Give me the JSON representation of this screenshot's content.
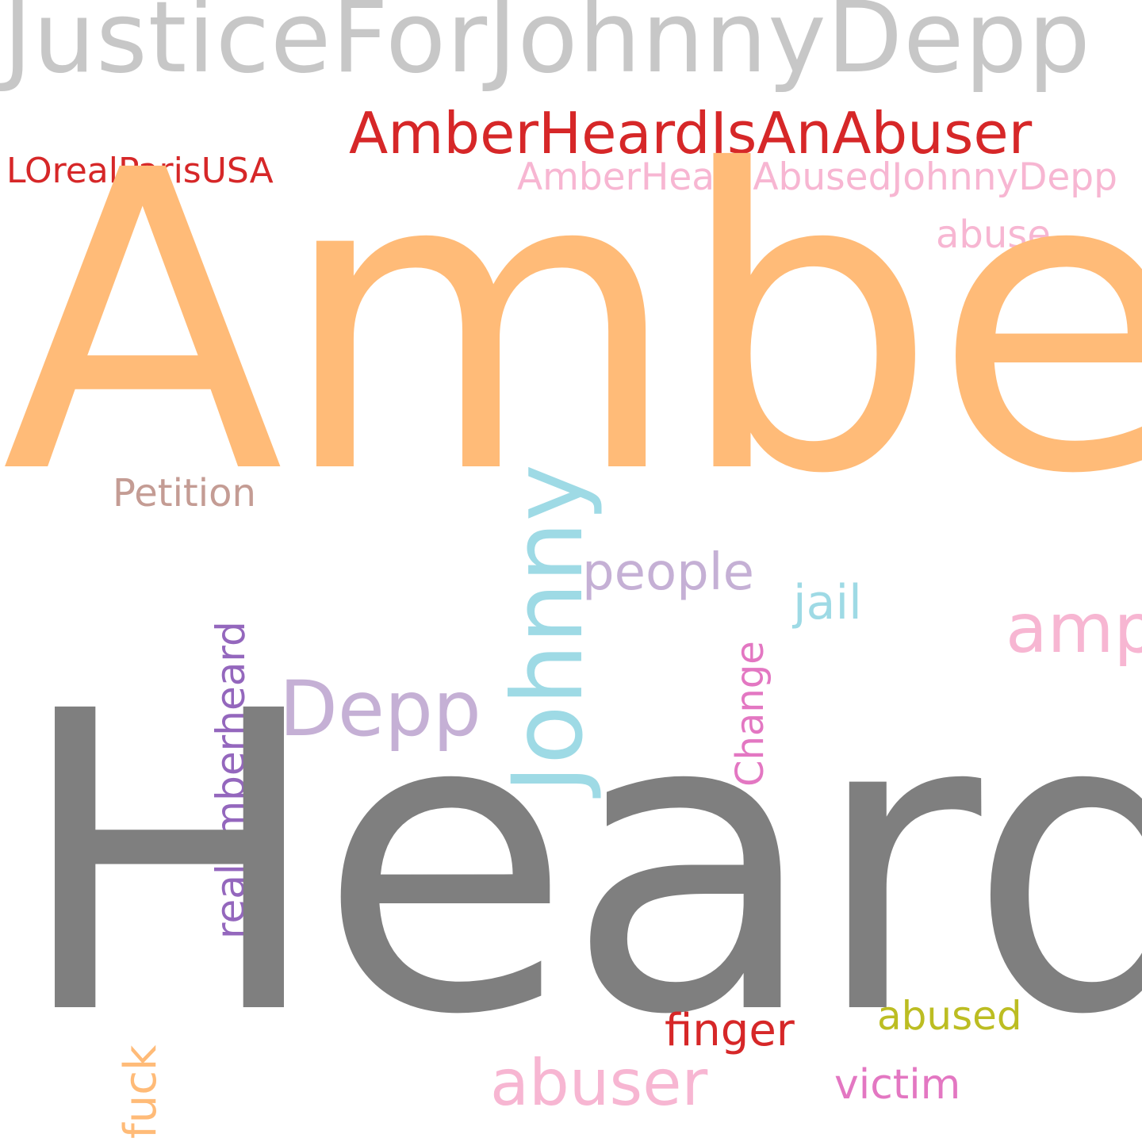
{
  "words": {
    "justice_for_johnny_depp": {
      "text": "JusticeForJohnnyDepp",
      "color": "#c7c7c7"
    },
    "amber_heard_is_an_abuser": {
      "text": "AmberHeardIsAnAbuser",
      "color": "#d62728"
    },
    "loreal_paris_usa": {
      "text": "LOrealParisUSA",
      "color": "#d62728"
    },
    "amber_heard_abused_johnny_depp": {
      "text": "AmberHeardAbusedJohnnyDepp",
      "color": "#f7b6d2"
    },
    "abuse": {
      "text": "abuse",
      "color": "#f7b6d2"
    },
    "amber": {
      "text": "Amber",
      "color": "#ffbb78"
    },
    "petition": {
      "text": "Petition",
      "color": "#c49c94"
    },
    "people": {
      "text": "people",
      "color": "#c5b0d5"
    },
    "jail": {
      "text": "jail",
      "color": "#9edae5"
    },
    "amp": {
      "text": "amp",
      "color": "#f7b6d2"
    },
    "depp": {
      "text": "Depp",
      "color": "#c5b0d5"
    },
    "johnny": {
      "text": "Johnny",
      "color": "#9edae5"
    },
    "realamberheard": {
      "text": "realamberheard",
      "color": "#9467bd"
    },
    "change": {
      "text": "Change",
      "color": "#e377c2"
    },
    "heard": {
      "text": "Heard",
      "color": "#7f7f7f"
    },
    "finger": {
      "text": "finger",
      "color": "#d62728"
    },
    "abused": {
      "text": "abused",
      "color": "#bcbd22"
    },
    "abuser": {
      "text": "abuser",
      "color": "#f7b6d2"
    },
    "victim": {
      "text": "victim",
      "color": "#e377c2"
    },
    "fuck": {
      "text": "fuck",
      "color": "#ffbb78"
    }
  }
}
